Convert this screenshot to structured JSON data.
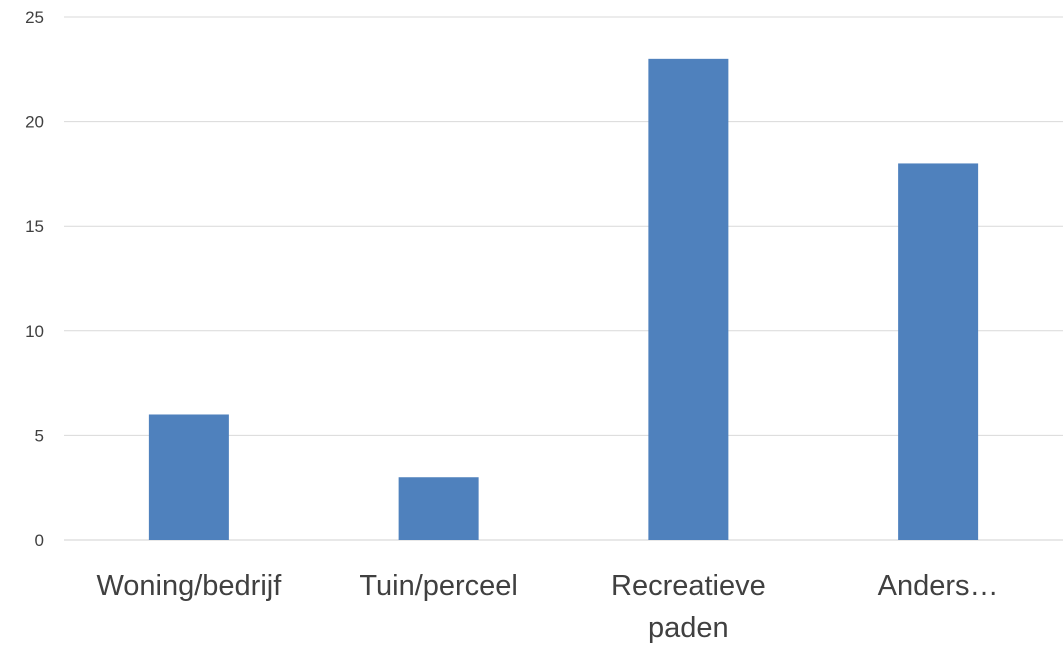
{
  "chart_data": {
    "type": "bar",
    "categories": [
      [
        "Woning/bedrijf"
      ],
      [
        "Tuin/perceel"
      ],
      [
        "Recreatieve",
        "paden"
      ],
      [
        "Anders…"
      ]
    ],
    "values": [
      6,
      3,
      23,
      18
    ],
    "ylim": [
      0,
      25
    ],
    "yticks": [
      0,
      5,
      10,
      15,
      20,
      25
    ],
    "grid": true,
    "bar_color": "#4f81bd",
    "legend": "none"
  }
}
